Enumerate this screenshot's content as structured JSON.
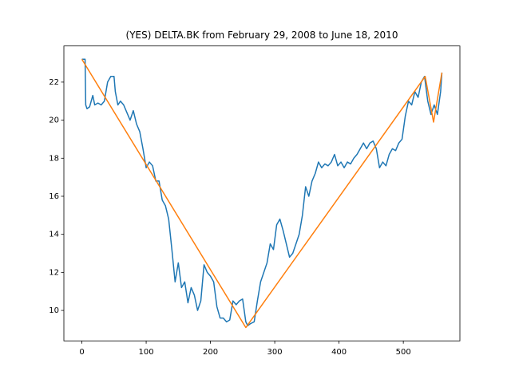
{
  "chart_data": {
    "type": "line",
    "title": "(YES) DELTA.BK from February 29, 2008 to June 18, 2010",
    "xlim": [
      -28,
      588
    ],
    "xticks": [
      0,
      100,
      200,
      300,
      400,
      500
    ],
    "ylim": [
      8.4,
      23.9
    ],
    "yticks": [
      10,
      12,
      14,
      16,
      18,
      20,
      22
    ],
    "series": [
      {
        "color": "#1f77b4",
        "x": [
          0,
          5,
          6,
          8,
          12,
          17,
          20,
          25,
          30,
          35,
          40,
          45,
          50,
          52,
          56,
          60,
          65,
          70,
          75,
          80,
          85,
          90,
          95,
          100,
          105,
          110,
          115,
          120,
          125,
          130,
          135,
          140,
          145,
          150,
          155,
          160,
          165,
          170,
          175,
          180,
          185,
          190,
          195,
          200,
          205,
          210,
          215,
          220,
          225,
          230,
          235,
          240,
          245,
          250,
          255,
          258,
          262,
          268,
          273,
          278,
          283,
          288,
          293,
          298,
          303,
          308,
          313,
          318,
          323,
          328,
          333,
          338,
          343,
          348,
          353,
          358,
          363,
          368,
          373,
          378,
          383,
          388,
          393,
          398,
          403,
          408,
          413,
          418,
          423,
          428,
          433,
          438,
          443,
          448,
          453,
          458,
          463,
          468,
          473,
          478,
          483,
          488,
          493,
          498,
          503,
          508,
          513,
          518,
          523,
          528,
          533,
          538,
          543,
          548,
          553,
          558,
          560
        ],
        "values": [
          23.2,
          23.2,
          20.8,
          20.6,
          20.7,
          21.3,
          20.8,
          20.9,
          20.8,
          21.0,
          22.0,
          22.3,
          22.3,
          21.5,
          20.8,
          21.0,
          20.8,
          20.4,
          20.0,
          20.5,
          19.8,
          19.4,
          18.5,
          17.5,
          17.8,
          17.6,
          16.8,
          16.8,
          15.8,
          15.5,
          14.8,
          13.2,
          11.5,
          12.5,
          11.2,
          11.5,
          10.4,
          11.2,
          10.8,
          10.0,
          10.5,
          12.4,
          12.0,
          11.8,
          11.5,
          10.2,
          9.6,
          9.6,
          9.4,
          9.5,
          10.5,
          10.3,
          10.5,
          10.6,
          9.4,
          9.2,
          9.3,
          9.4,
          10.5,
          11.5,
          12.0,
          12.5,
          13.5,
          13.2,
          14.5,
          14.8,
          14.2,
          13.5,
          12.8,
          13.0,
          13.5,
          14.0,
          15.0,
          16.5,
          16.0,
          16.8,
          17.2,
          17.8,
          17.5,
          17.7,
          17.6,
          17.8,
          18.2,
          17.6,
          17.8,
          17.5,
          17.8,
          17.7,
          18.0,
          18.2,
          18.5,
          18.8,
          18.5,
          18.8,
          18.9,
          18.5,
          17.5,
          17.8,
          17.6,
          18.2,
          18.5,
          18.4,
          18.8,
          19.0,
          20.2,
          21.0,
          20.8,
          21.5,
          21.2,
          22.0,
          22.3,
          21.0,
          20.3,
          20.8,
          20.3,
          21.5,
          22.5
        ]
      },
      {
        "color": "#ff7f0e",
        "x": [
          0,
          255,
          534,
          547,
          560
        ],
        "values": [
          23.2,
          9.1,
          22.3,
          19.9,
          22.5
        ]
      }
    ]
  }
}
